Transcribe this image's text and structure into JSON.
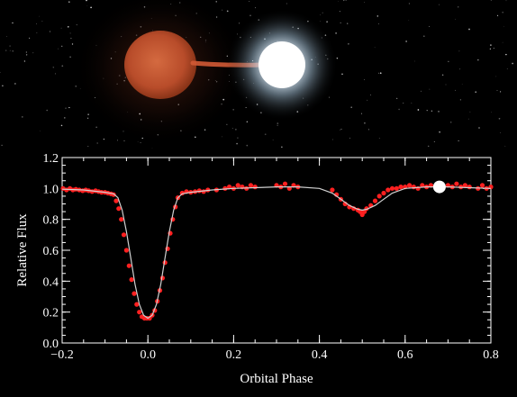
{
  "scene": {
    "colors": {
      "background": "#000000",
      "red_giant": "#c0502a",
      "hot_star": "#ffffff",
      "hot_star_glow": "#b8d8f0",
      "mass_stream": "#d25a35"
    },
    "objects": [
      "red-giant-star",
      "hot-companion-star",
      "mass-transfer-stream",
      "starfield"
    ]
  },
  "chart_data": {
    "type": "scatter",
    "title": "",
    "xlabel": "Orbital Phase",
    "ylabel": "Relative Flux",
    "xlim": [
      -0.2,
      0.8
    ],
    "ylim": [
      0.0,
      1.2
    ],
    "xticks": [
      -0.2,
      0.0,
      0.2,
      0.4,
      0.6,
      0.8
    ],
    "xtick_labels": [
      "−0.2",
      "0.0",
      "0.2",
      "0.4",
      "0.6",
      "0.8"
    ],
    "yticks": [
      0.0,
      0.2,
      0.4,
      0.6,
      0.8,
      1.0,
      1.2
    ],
    "ytick_labels": [
      "0.0",
      "0.2",
      "0.4",
      "0.6",
      "0.8",
      "1.0",
      "1.2"
    ],
    "grid": false,
    "legend": "none",
    "colors": {
      "data_points": "#ff2020",
      "model_curve": "#d0d0d0",
      "marker": "#ffffff",
      "axes": "#ffffff"
    },
    "model_curve": {
      "name": "",
      "x": [
        -0.2,
        -0.15,
        -0.1,
        -0.08,
        -0.07,
        -0.06,
        -0.05,
        -0.04,
        -0.03,
        -0.02,
        -0.01,
        0.0,
        0.01,
        0.02,
        0.03,
        0.04,
        0.05,
        0.06,
        0.07,
        0.08,
        0.1,
        0.15,
        0.2,
        0.25,
        0.3,
        0.35,
        0.4,
        0.43,
        0.45,
        0.47,
        0.49,
        0.5,
        0.51,
        0.53,
        0.55,
        0.57,
        0.6,
        0.65,
        0.7,
        0.75,
        0.8
      ],
      "y": [
        0.995,
        0.99,
        0.975,
        0.965,
        0.94,
        0.86,
        0.72,
        0.55,
        0.38,
        0.25,
        0.18,
        0.16,
        0.18,
        0.25,
        0.38,
        0.55,
        0.72,
        0.86,
        0.94,
        0.965,
        0.975,
        0.99,
        1.0,
        1.005,
        1.01,
        1.01,
        1.0,
        0.97,
        0.93,
        0.89,
        0.865,
        0.86,
        0.865,
        0.89,
        0.93,
        0.97,
        1.0,
        1.01,
        1.01,
        1.005,
        1.0
      ]
    },
    "observations": {
      "name": "",
      "x": [
        -0.198,
        -0.19,
        -0.182,
        -0.175,
        -0.168,
        -0.16,
        -0.152,
        -0.145,
        -0.138,
        -0.13,
        -0.122,
        -0.115,
        -0.108,
        -0.1,
        -0.093,
        -0.086,
        -0.08,
        -0.074,
        -0.068,
        -0.062,
        -0.056,
        -0.05,
        -0.044,
        -0.038,
        -0.032,
        -0.026,
        -0.02,
        -0.014,
        -0.008,
        -0.002,
        0.004,
        0.01,
        0.016,
        0.022,
        0.028,
        0.034,
        0.04,
        0.046,
        0.052,
        0.058,
        0.064,
        0.07,
        0.08,
        0.09,
        0.1,
        0.11,
        0.12,
        0.13,
        0.14,
        0.16,
        0.18,
        0.19,
        0.2,
        0.21,
        0.22,
        0.23,
        0.24,
        0.25,
        0.3,
        0.31,
        0.32,
        0.33,
        0.34,
        0.35,
        0.43,
        0.44,
        0.45,
        0.46,
        0.47,
        0.48,
        0.49,
        0.495,
        0.5,
        0.505,
        0.51,
        0.52,
        0.53,
        0.54,
        0.55,
        0.56,
        0.57,
        0.58,
        0.59,
        0.6,
        0.61,
        0.62,
        0.63,
        0.64,
        0.65,
        0.66,
        0.7,
        0.71,
        0.72,
        0.73,
        0.74,
        0.75,
        0.77,
        0.78,
        0.79,
        0.8
      ],
      "y": [
        1.0,
        0.99,
        1.0,
        0.99,
        0.995,
        0.99,
        0.985,
        0.99,
        0.985,
        0.98,
        0.985,
        0.98,
        0.975,
        0.975,
        0.97,
        0.965,
        0.96,
        0.92,
        0.87,
        0.8,
        0.7,
        0.6,
        0.5,
        0.41,
        0.32,
        0.25,
        0.2,
        0.17,
        0.16,
        0.16,
        0.16,
        0.18,
        0.21,
        0.27,
        0.34,
        0.42,
        0.52,
        0.61,
        0.71,
        0.8,
        0.88,
        0.94,
        0.97,
        0.98,
        0.975,
        0.98,
        0.985,
        0.98,
        0.99,
        0.99,
        1.0,
        1.01,
        1.0,
        1.02,
        1.01,
        1.0,
        1.02,
        1.01,
        1.02,
        1.01,
        1.03,
        1.0,
        1.02,
        1.01,
        0.99,
        0.96,
        0.93,
        0.9,
        0.88,
        0.87,
        0.86,
        0.85,
        0.83,
        0.85,
        0.87,
        0.89,
        0.92,
        0.95,
        0.97,
        0.99,
        1.0,
        1.0,
        1.01,
        1.01,
        1.02,
        1.01,
        1.0,
        1.02,
        1.01,
        1.02,
        1.02,
        1.01,
        1.03,
        1.01,
        1.02,
        1.01,
        1.0,
        1.02,
        1.0,
        1.01
      ]
    },
    "current_phase_marker": {
      "x": 0.68,
      "y": 1.01
    }
  }
}
